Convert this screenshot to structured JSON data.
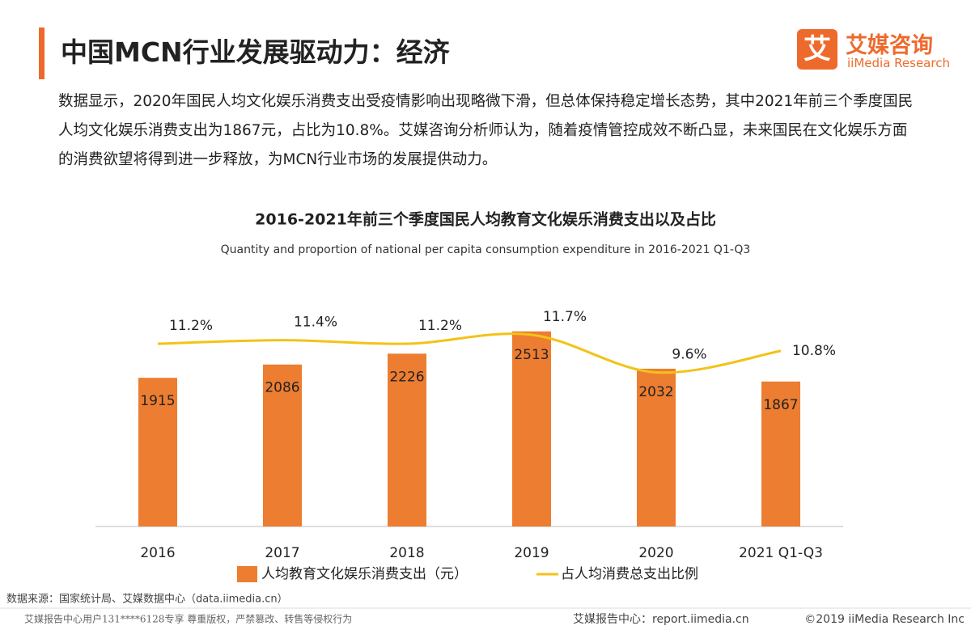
{
  "header": {
    "title": "中国MCN行业发展驱动力：经济",
    "logo_char": "艾",
    "brand_cn": "艾媒咨询",
    "brand_en": "iiMedia Research"
  },
  "body": "数据显示，2020年国民人均文化娱乐消费支出受疫情影响出现略微下滑，但总体保持稳定增长态势，其中2021年前三个季度国民人均文化娱乐消费支出为1867元，占比为10.8%。艾媒咨询分析师认为，随着疫情管控成效不断凸显，未来国民在文化娱乐方面的消费欲望将得到进一步释放，为MCN行业市场的发展提供动力。",
  "chart_data": {
    "type": "bar",
    "title": "2016-2021年前三个季度国民人均教育文化娱乐消费支出以及占比",
    "subtitle": "Quantity and proportion of national per capita consumption expenditure in 2016-2021 Q1-Q3",
    "categories": [
      "2016",
      "2017",
      "2018",
      "2019",
      "2020",
      "2021 Q1-Q3"
    ],
    "series": [
      {
        "name": "人均教育文化娱乐消费支出（元）",
        "type": "bar",
        "color": "#ed7d31",
        "values": [
          1915,
          2086,
          2226,
          2513,
          2032,
          1867
        ]
      },
      {
        "name": "占人均消费总支出比例",
        "type": "line",
        "axis": "y2",
        "color": "#f2c318",
        "values": [
          11.2,
          11.4,
          11.2,
          11.7,
          9.6,
          10.8
        ],
        "value_labels": [
          "11.2%",
          "11.4%",
          "11.2%",
          "11.7%",
          "9.6%",
          "10.8%"
        ]
      }
    ],
    "ylim": [
      0,
      3000
    ],
    "y2lim": [
      1,
      14
    ]
  },
  "footer": {
    "source": "数据来源：国家统计局、艾媒数据中心（data.iimedia.cn）",
    "watermark": "艾媒报告中心用户131****6128专享 尊重版权，严禁篡改、转售等侵权行为",
    "site": "艾媒报告中心：report.iimedia.cn",
    "copyright": "©2019  iiMedia Research  Inc"
  }
}
